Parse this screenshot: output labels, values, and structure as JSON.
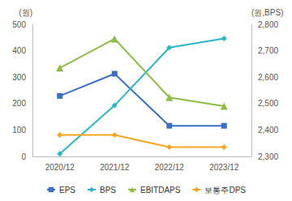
{
  "chart_data": {
    "type": "line",
    "categories": [
      "2020/12",
      "2021/12",
      "2022/12",
      "2023/12"
    ],
    "y_label": "(원)",
    "y2_label": "(원,BPS)",
    "ylim": [
      0,
      500
    ],
    "yticks": [
      0,
      100,
      200,
      300,
      400,
      500
    ],
    "y2lim": [
      2300,
      2800
    ],
    "y2ticks": [
      {
        "value": 2300,
        "label": "2,300"
      },
      {
        "value": 2400,
        "label": "2,400"
      },
      {
        "value": 2500,
        "label": "2,500"
      },
      {
        "value": 2600,
        "label": "2,600"
      },
      {
        "value": 2700,
        "label": "2,700"
      },
      {
        "value": 2800,
        "label": "2,800"
      }
    ],
    "grid": false,
    "legend": "bottom",
    "series": [
      {
        "name": "EPS",
        "color": "#3a6fc4",
        "marker": "square",
        "values": [
          229,
          313,
          116,
          116
        ]
      },
      {
        "name": "BPS",
        "color": "#29b6c6",
        "marker": "diamond",
        "axis": "y2",
        "values": [
          2310,
          2493,
          2712,
          2746
        ]
      },
      {
        "name": "EBITDAPS",
        "color": "#8fbc47",
        "marker": "triangle",
        "values": [
          335,
          445,
          223,
          190
        ]
      },
      {
        "name": "보통주DPS",
        "color": "#f5a623",
        "marker": "diamond",
        "values": [
          81,
          81,
          35,
          35
        ]
      }
    ]
  }
}
